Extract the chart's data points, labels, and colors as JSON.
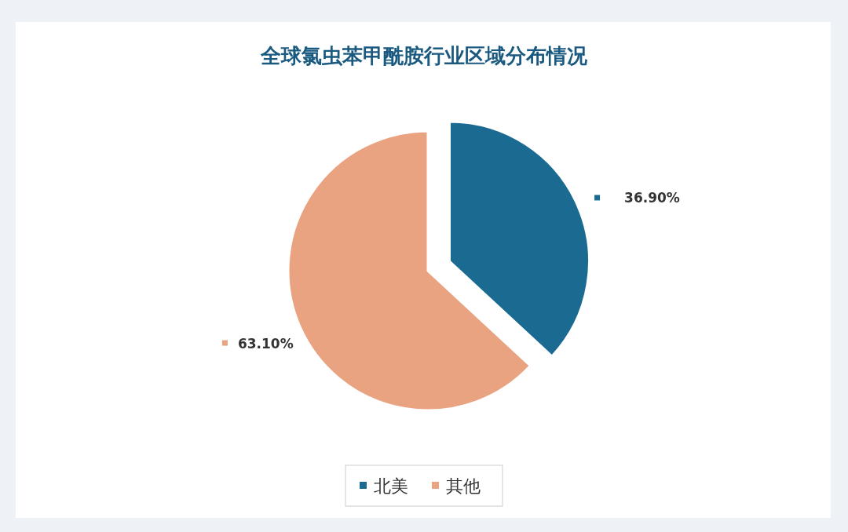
{
  "chart_data": {
    "type": "pie",
    "title": "全球氯虫苯甲酰胺行业区域分布情况",
    "categories": [
      "北美",
      "其他"
    ],
    "values": [
      36.9,
      63.1
    ],
    "colors": [
      "#1b6a91",
      "#e9a380"
    ],
    "value_labels": [
      "36.90%",
      "63.10%"
    ],
    "legend": "bottom"
  }
}
